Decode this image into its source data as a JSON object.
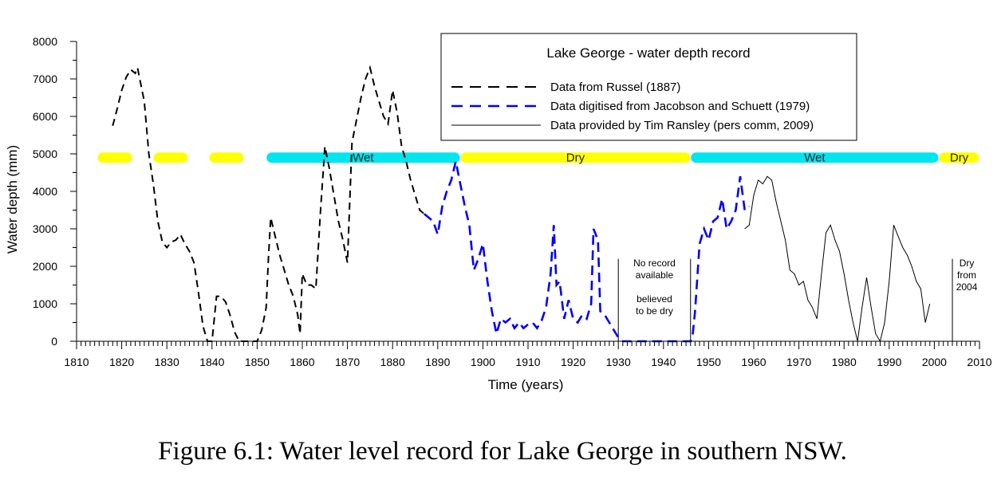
{
  "caption": "Figure 6.1: Water level record for Lake George in southern NSW.",
  "chart_data": {
    "type": "line",
    "title": "Lake George - water depth record",
    "xlabel": "Time (years)",
    "ylabel": "Water depth (mm)",
    "xlim": [
      1810,
      2010
    ],
    "ylim": [
      0,
      8000
    ],
    "x_ticks": [
      1810,
      1820,
      1830,
      1840,
      1850,
      1860,
      1870,
      1880,
      1890,
      1900,
      1910,
      1920,
      1930,
      1940,
      1950,
      1960,
      1970,
      1980,
      1990,
      2000,
      2010
    ],
    "y_ticks": [
      0,
      1000,
      2000,
      3000,
      4000,
      5000,
      6000,
      7000,
      8000
    ],
    "grid": false,
    "legend_position": "top-right",
    "series": [
      {
        "name": "Data from Russel (1887)",
        "style": "dashed",
        "color": "#000000",
        "points": [
          [
            1818,
            5750
          ],
          [
            1819,
            6200
          ],
          [
            1820,
            6700
          ],
          [
            1821,
            7050
          ],
          [
            1822,
            7250
          ],
          [
            1823,
            7150
          ],
          [
            1823.5,
            7300
          ],
          [
            1824,
            7000
          ],
          [
            1825,
            6400
          ],
          [
            1826,
            5000
          ],
          [
            1827,
            4200
          ],
          [
            1828,
            3200
          ],
          [
            1829,
            2650
          ],
          [
            1830,
            2500
          ],
          [
            1831,
            2650
          ],
          [
            1832,
            2700
          ],
          [
            1833,
            2850
          ],
          [
            1834,
            2600
          ],
          [
            1835,
            2400
          ],
          [
            1836,
            2100
          ],
          [
            1837,
            1300
          ],
          [
            1838,
            400
          ],
          [
            1839,
            0
          ],
          [
            1840,
            0
          ],
          [
            1841,
            1200
          ],
          [
            1842,
            1200
          ],
          [
            1843,
            1050
          ],
          [
            1844,
            700
          ],
          [
            1845,
            250
          ],
          [
            1846,
            0
          ],
          [
            1848,
            0
          ],
          [
            1850,
            0
          ],
          [
            1851,
            300
          ],
          [
            1852,
            900
          ],
          [
            1852.5,
            2200
          ],
          [
            1853,
            3300
          ],
          [
            1854,
            2800
          ],
          [
            1855,
            2300
          ],
          [
            1856,
            1900
          ],
          [
            1857,
            1500
          ],
          [
            1858,
            1200
          ],
          [
            1859,
            700
          ],
          [
            1859.5,
            200
          ],
          [
            1860,
            1800
          ],
          [
            1861,
            1500
          ],
          [
            1862,
            1500
          ],
          [
            1863,
            1400
          ],
          [
            1864,
            3400
          ],
          [
            1865,
            5200
          ],
          [
            1866,
            4600
          ],
          [
            1867,
            3900
          ],
          [
            1868,
            3200
          ],
          [
            1869,
            2700
          ],
          [
            1870,
            2100
          ],
          [
            1871,
            5300
          ],
          [
            1872,
            5900
          ],
          [
            1873,
            6500
          ],
          [
            1874,
            7000
          ],
          [
            1875,
            7300
          ],
          [
            1876,
            6800
          ],
          [
            1877,
            6400
          ],
          [
            1878,
            6000
          ],
          [
            1879,
            5800
          ],
          [
            1880,
            6700
          ],
          [
            1881,
            6100
          ],
          [
            1882,
            5200
          ],
          [
            1883,
            4800
          ],
          [
            1884,
            4300
          ],
          [
            1885,
            3900
          ],
          [
            1886,
            3500
          ],
          [
            1887,
            3400
          ]
        ]
      },
      {
        "name": "Data digitised from Jacobson and Schuett (1979)",
        "style": "dashed",
        "color": "#0000ff",
        "points": [
          [
            1887,
            3400
          ],
          [
            1888,
            3300
          ],
          [
            1889,
            3200
          ],
          [
            1890,
            2850
          ],
          [
            1891,
            3600
          ],
          [
            1892,
            4000
          ],
          [
            1893,
            4300
          ],
          [
            1894,
            4800
          ],
          [
            1895,
            4200
          ],
          [
            1896,
            3600
          ],
          [
            1897,
            3100
          ],
          [
            1898,
            1900
          ],
          [
            1899,
            2200
          ],
          [
            1900,
            2600
          ],
          [
            1901,
            1600
          ],
          [
            1902,
            800
          ],
          [
            1903,
            200
          ],
          [
            1904,
            600
          ],
          [
            1905,
            500
          ],
          [
            1906,
            600
          ],
          [
            1907,
            350
          ],
          [
            1908,
            500
          ],
          [
            1909,
            350
          ],
          [
            1910,
            450
          ],
          [
            1911,
            500
          ],
          [
            1912,
            350
          ],
          [
            1913,
            550
          ],
          [
            1914,
            900
          ],
          [
            1915,
            1800
          ],
          [
            1915.7,
            3100
          ],
          [
            1916.3,
            1500
          ],
          [
            1917,
            1600
          ],
          [
            1918,
            600
          ],
          [
            1919,
            1100
          ],
          [
            1920,
            600
          ],
          [
            1921,
            500
          ],
          [
            1922,
            700
          ],
          [
            1923,
            600
          ],
          [
            1924,
            1000
          ],
          [
            1924.5,
            3000
          ],
          [
            1925.5,
            2700
          ],
          [
            1926,
            800
          ],
          [
            1927,
            700
          ],
          [
            1928,
            500
          ],
          [
            1929,
            300
          ],
          [
            1930,
            100
          ],
          [
            1931,
            0
          ],
          [
            1935,
            0
          ],
          [
            1940,
            0
          ],
          [
            1946,
            0
          ],
          [
            1946.5,
            200
          ],
          [
            1947,
            800
          ],
          [
            1948,
            2600
          ],
          [
            1949,
            3000
          ],
          [
            1950,
            2700
          ],
          [
            1951,
            3200
          ],
          [
            1952,
            3300
          ],
          [
            1953,
            3800
          ],
          [
            1954,
            3000
          ],
          [
            1955,
            3200
          ],
          [
            1956,
            3500
          ],
          [
            1957,
            4400
          ],
          [
            1958,
            3500
          ],
          [
            1959,
            3600
          ]
        ]
      },
      {
        "name": "Data provided by Tim Ransley (pers comm, 2009)",
        "style": "solid",
        "color": "#000000",
        "points": [
          [
            1958,
            3000
          ],
          [
            1959,
            3100
          ],
          [
            1960,
            3900
          ],
          [
            1961,
            4300
          ],
          [
            1962,
            4200
          ],
          [
            1963,
            4400
          ],
          [
            1964,
            4300
          ],
          [
            1965,
            3700
          ],
          [
            1966,
            3200
          ],
          [
            1967,
            2700
          ],
          [
            1968,
            1900
          ],
          [
            1969,
            1800
          ],
          [
            1970,
            1500
          ],
          [
            1971,
            1600
          ],
          [
            1972,
            1100
          ],
          [
            1973,
            900
          ],
          [
            1974,
            600
          ],
          [
            1975,
            1800
          ],
          [
            1976,
            2900
          ],
          [
            1977,
            3100
          ],
          [
            1978,
            2700
          ],
          [
            1979,
            2400
          ],
          [
            1980,
            1800
          ],
          [
            1981,
            1100
          ],
          [
            1982,
            500
          ],
          [
            1983,
            0
          ],
          [
            1984,
            900
          ],
          [
            1985,
            1700
          ],
          [
            1986,
            900
          ],
          [
            1987,
            200
          ],
          [
            1988,
            0
          ],
          [
            1989,
            500
          ],
          [
            1990,
            1600
          ],
          [
            1991,
            3100
          ],
          [
            1992,
            2800
          ],
          [
            1993,
            2500
          ],
          [
            1994,
            2300
          ],
          [
            1995,
            2000
          ],
          [
            1996,
            1600
          ],
          [
            1997,
            1400
          ],
          [
            1998,
            500
          ],
          [
            1999,
            1000
          ]
        ]
      }
    ],
    "bands": [
      {
        "label": "",
        "start": 1810,
        "end": 1852,
        "color": "#ffff00",
        "dashed": true
      },
      {
        "label": "Wet",
        "start": 1852,
        "end": 1895,
        "color": "#00e5ee",
        "dashed": false
      },
      {
        "label": "Dry",
        "start": 1895,
        "end": 1946,
        "color": "#ffff00",
        "dashed": false
      },
      {
        "label": "Wet",
        "start": 1946,
        "end": 2001,
        "color": "#00e5ee",
        "dashed": false
      },
      {
        "label": "Dry",
        "start": 2001,
        "end": 2010,
        "color": "#ffff00",
        "dashed": false
      }
    ],
    "band_level": 4900,
    "annotations": [
      {
        "id": "no-record",
        "lines": [
          "No record",
          "available",
          "",
          "believed",
          "to be dry"
        ],
        "x_start": 1930,
        "x_end": 1946
      },
      {
        "id": "dry-from",
        "lines": [
          "Dry",
          "from",
          "2004"
        ],
        "x_start": 2004
      }
    ]
  }
}
